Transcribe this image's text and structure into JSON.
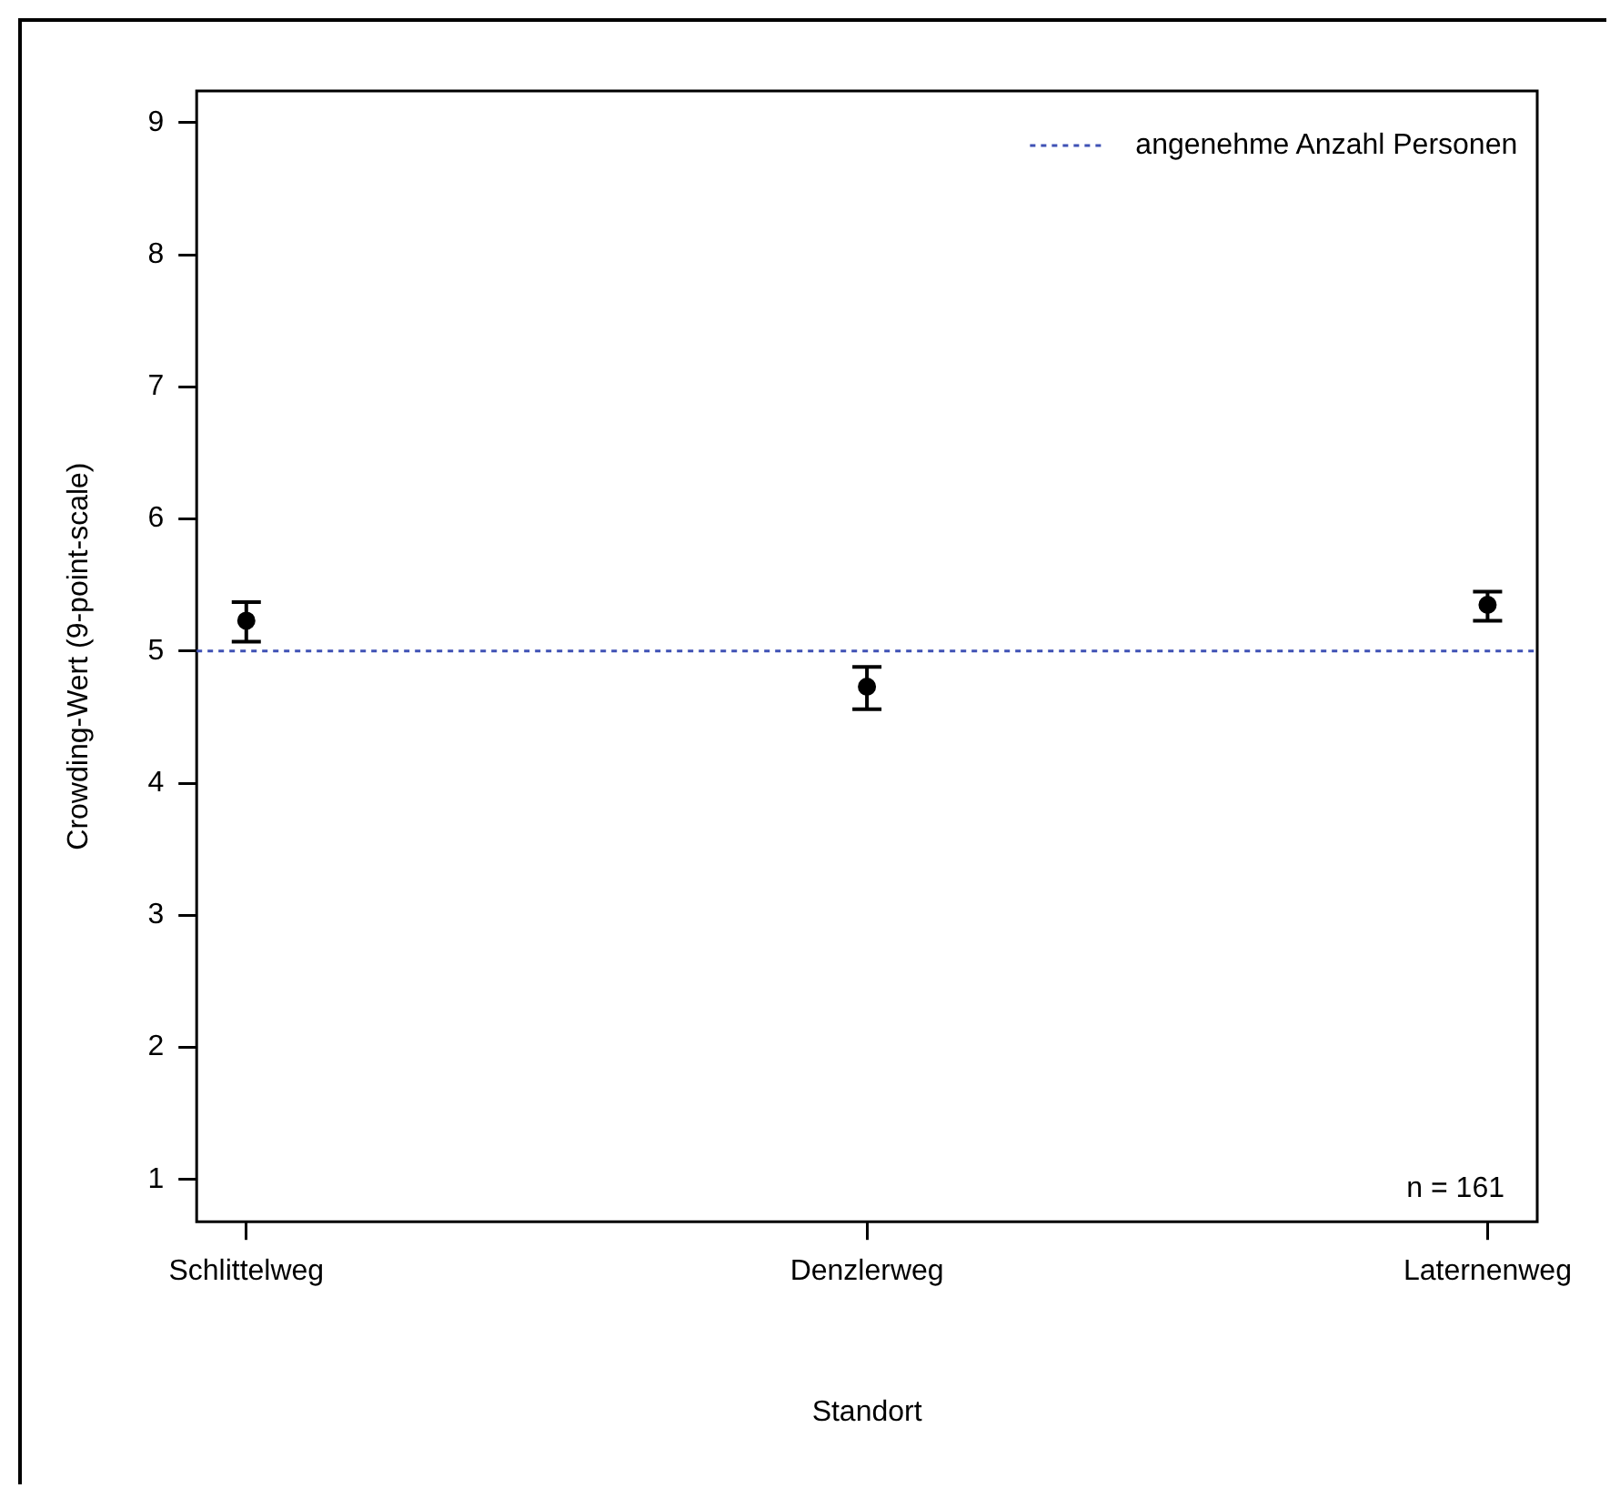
{
  "chart_data": {
    "type": "scatter",
    "xlabel": "Standort",
    "ylabel": "Crowding-Wert (9-point-scale)",
    "categories": [
      "Schlittelweg",
      "Denzlerweg",
      "Laternenweg"
    ],
    "values": [
      5.23,
      4.73,
      5.35
    ],
    "errors": [
      [
        5.07,
        5.37
      ],
      [
        4.56,
        4.88
      ],
      [
        5.23,
        5.45
      ]
    ],
    "color": "#000000",
    "marker": "circle",
    "ylim": [
      0.68,
      9.24
    ],
    "yticks": [
      1,
      2,
      3,
      4,
      5,
      6,
      7,
      8,
      9
    ],
    "ref_lines": [
      {
        "axis": "y",
        "value": 5,
        "label": "angenehme Anzahl Personen",
        "color": "#3f51b5",
        "line_style": "dotted"
      }
    ],
    "annotations": [
      "n = 161"
    ],
    "legend": "top right",
    "grid": false
  }
}
